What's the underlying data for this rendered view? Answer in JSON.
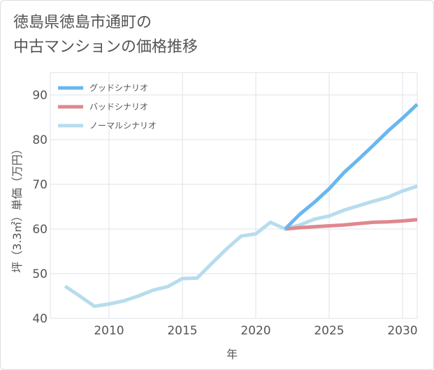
{
  "title": {
    "line1": "徳島県徳島市通町の",
    "line2": "中古マンションの価格推移"
  },
  "chart_data": {
    "type": "line",
    "xlabel": "年",
    "ylabel": "坪（3.3㎡）単価（万円）",
    "xlim": [
      2006,
      2031
    ],
    "ylim": [
      40,
      95
    ],
    "xticks": [
      2010,
      2015,
      2020,
      2025,
      2030
    ],
    "yticks": [
      40,
      50,
      60,
      70,
      80,
      90
    ],
    "grid": true,
    "legend_position": "top-left",
    "series": [
      {
        "name": "グッドシナリオ",
        "color": "#6ab7ee",
        "x": [
          2022,
          2023,
          2024,
          2025,
          2026,
          2027,
          2028,
          2029,
          2030,
          2031
        ],
        "y": [
          60.0,
          63.3,
          66.0,
          69.0,
          72.6,
          75.6,
          78.7,
          81.9,
          84.8,
          87.9
        ]
      },
      {
        "name": "バッドシナリオ",
        "color": "#e0878f",
        "x": [
          2022,
          2023,
          2024,
          2025,
          2026,
          2027,
          2028,
          2029,
          2030,
          2031
        ],
        "y": [
          60.0,
          60.3,
          60.5,
          60.7,
          60.9,
          61.2,
          61.5,
          61.6,
          61.8,
          62.1
        ]
      },
      {
        "name": "ノーマルシナリオ",
        "color": "#b7dced",
        "x": [
          2007,
          2008,
          2009,
          2010,
          2011,
          2012,
          2013,
          2014,
          2015,
          2016,
          2017,
          2018,
          2019,
          2020,
          2021,
          2022,
          2023,
          2024,
          2025,
          2026,
          2027,
          2028,
          2029,
          2030,
          2031
        ],
        "y": [
          47.2,
          45.0,
          42.7,
          43.2,
          43.9,
          45.0,
          46.3,
          47.1,
          48.9,
          49.0,
          52.3,
          55.5,
          58.4,
          58.9,
          61.5,
          60.0,
          60.9,
          62.2,
          62.9,
          64.2,
          65.2,
          66.2,
          67.1,
          68.5,
          69.6
        ]
      }
    ]
  }
}
